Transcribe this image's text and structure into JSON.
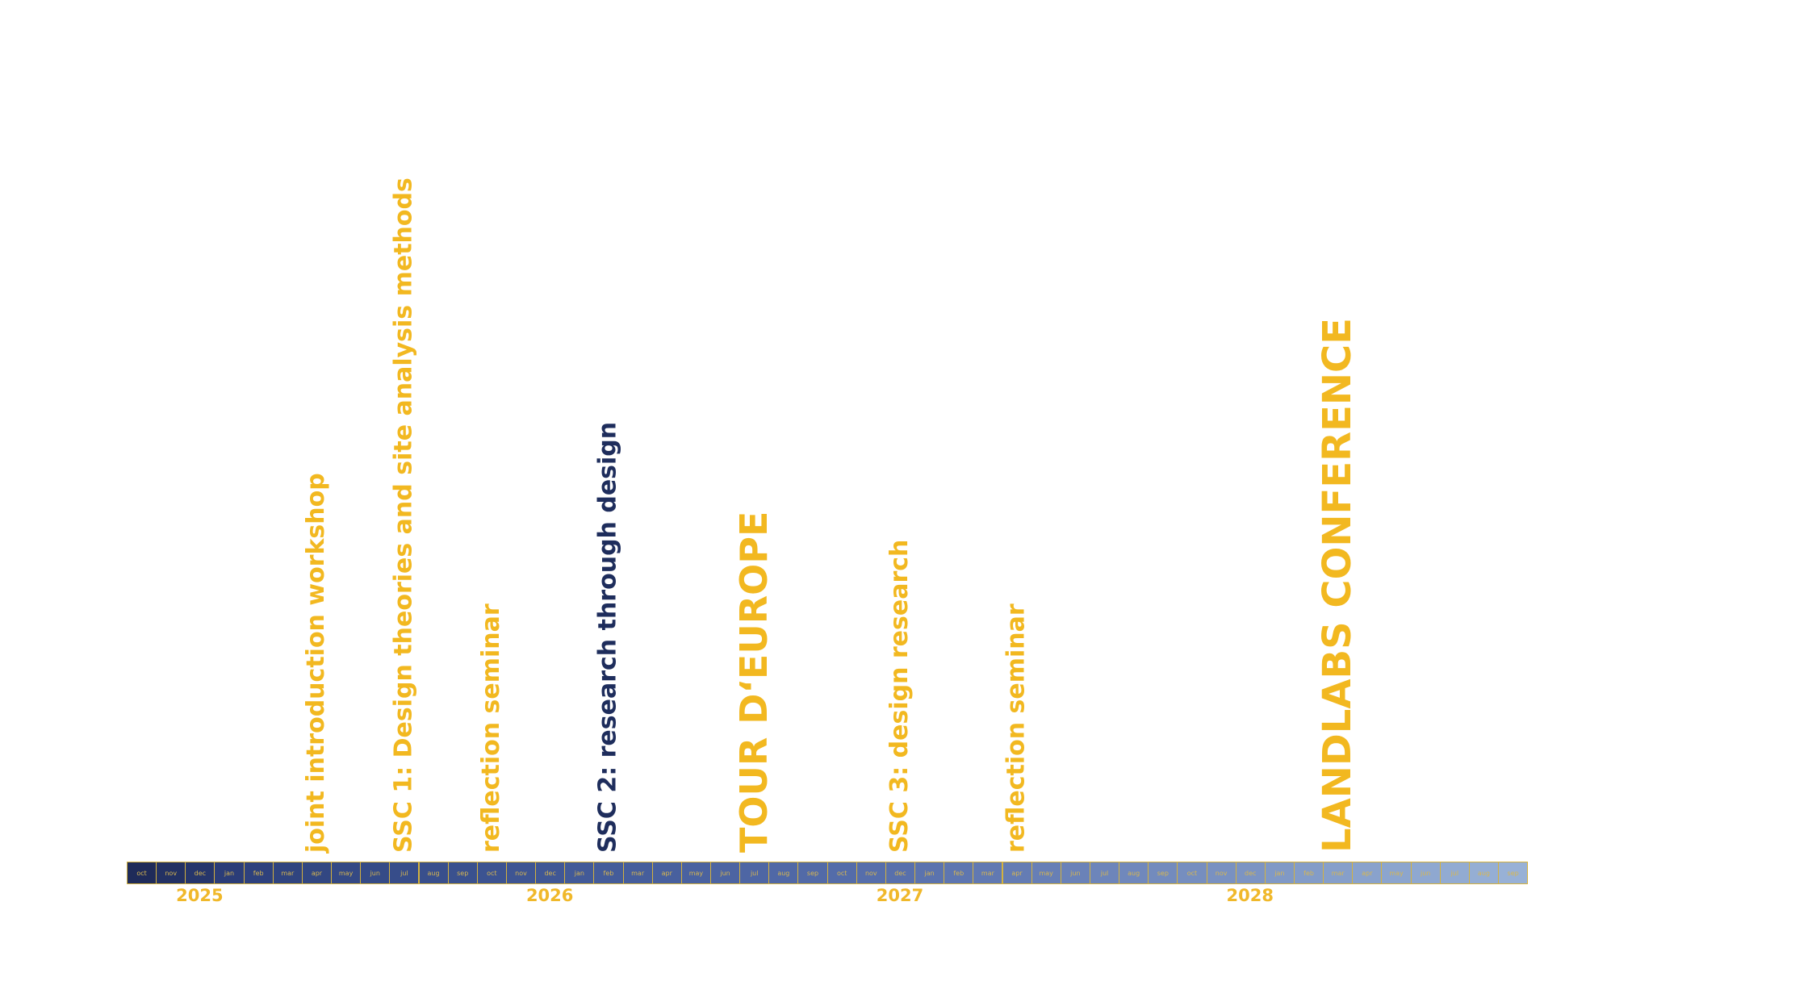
{
  "colors": {
    "accent_yellow": "#f2b820",
    "navy": "#1e2d5c",
    "month_border": "#d4b23e",
    "month_text": "#d8b750"
  },
  "months": [
    {
      "label": "oct",
      "fill": "#1f2b59"
    },
    {
      "label": "nov",
      "fill": "#233163"
    },
    {
      "label": "dec",
      "fill": "#26366b"
    },
    {
      "label": "jan",
      "fill": "#2b3d78"
    },
    {
      "label": "feb",
      "fill": "#2e417d"
    },
    {
      "label": "mar",
      "fill": "#30447f"
    },
    {
      "label": "apr",
      "fill": "#324782"
    },
    {
      "label": "may",
      "fill": "#344985"
    },
    {
      "label": "jun",
      "fill": "#354b87"
    },
    {
      "label": "jul",
      "fill": "#374d8a"
    },
    {
      "label": "aug",
      "fill": "#394f8c"
    },
    {
      "label": "sep",
      "fill": "#3a518e"
    },
    {
      "label": "oct",
      "fill": "#3c5391"
    },
    {
      "label": "nov",
      "fill": "#3e5593"
    },
    {
      "label": "dec",
      "fill": "#405795"
    },
    {
      "label": "jan",
      "fill": "#425a98"
    },
    {
      "label": "feb",
      "fill": "#445c9a"
    },
    {
      "label": "mar",
      "fill": "#465e9c"
    },
    {
      "label": "apr",
      "fill": "#48609e"
    },
    {
      "label": "may",
      "fill": "#4a62a0"
    },
    {
      "label": "jun",
      "fill": "#4c64a2"
    },
    {
      "label": "jul",
      "fill": "#4e66a4"
    },
    {
      "label": "aug",
      "fill": "#5068a6"
    },
    {
      "label": "sep",
      "fill": "#526aa7"
    },
    {
      "label": "oct",
      "fill": "#546ca9"
    },
    {
      "label": "nov",
      "fill": "#566eab"
    },
    {
      "label": "dec",
      "fill": "#5870ac"
    },
    {
      "label": "jan",
      "fill": "#5b73ae"
    },
    {
      "label": "feb",
      "fill": "#5e76b0"
    },
    {
      "label": "mar",
      "fill": "#6179b2"
    },
    {
      "label": "apr",
      "fill": "#647cb4"
    },
    {
      "label": "may",
      "fill": "#677fb6"
    },
    {
      "label": "jun",
      "fill": "#6a82b8"
    },
    {
      "label": "jul",
      "fill": "#6d85ba"
    },
    {
      "label": "aug",
      "fill": "#7088bc"
    },
    {
      "label": "sep",
      "fill": "#738bbd"
    },
    {
      "label": "oct",
      "fill": "#768ebf"
    },
    {
      "label": "nov",
      "fill": "#7991c1"
    },
    {
      "label": "dec",
      "fill": "#7c94c3"
    },
    {
      "label": "jan",
      "fill": "#8099c6"
    },
    {
      "label": "feb",
      "fill": "#839cc8"
    },
    {
      "label": "mar",
      "fill": "#869fca"
    },
    {
      "label": "apr",
      "fill": "#89a2cc"
    },
    {
      "label": "may",
      "fill": "#8ca5ce"
    },
    {
      "label": "jun",
      "fill": "#8fa8d0"
    },
    {
      "label": "jul",
      "fill": "#92abd2"
    },
    {
      "label": "aug",
      "fill": "#95aed4"
    },
    {
      "label": "sep",
      "fill": "#98b1d6"
    }
  ],
  "years": [
    {
      "label": "2025",
      "month_index": 2
    },
    {
      "label": "2026",
      "month_index": 14
    },
    {
      "label": "2027",
      "month_index": 26
    },
    {
      "label": "2028",
      "month_index": 38
    }
  ],
  "events": [
    {
      "label": "joint introduction workshop",
      "month_index": 6,
      "color": "#f2b820",
      "weight": "normal"
    },
    {
      "label": "SSC 1: Design theories and site analysis methods",
      "month_index": 9,
      "color": "#f2b820",
      "weight": "normal"
    },
    {
      "label": "reflection seminar",
      "month_index": 12,
      "color": "#f2b820",
      "weight": "normal"
    },
    {
      "label": "SSC 2: research through design",
      "month_index": 16,
      "color": "#1e2d5c",
      "weight": "normal"
    },
    {
      "label": "TOUR D‘EUROPE",
      "month_index": 21,
      "color": "#f2b820",
      "weight": "large"
    },
    {
      "label": "SSC 3: design research",
      "month_index": 26,
      "color": "#f2b820",
      "weight": "normal"
    },
    {
      "label": "reflection seminar",
      "month_index": 30,
      "color": "#f2b820",
      "weight": "normal"
    },
    {
      "label": "LANDLABS CONFERENCE",
      "month_index": 41,
      "color": "#f2b820",
      "weight": "xlarge"
    }
  ]
}
